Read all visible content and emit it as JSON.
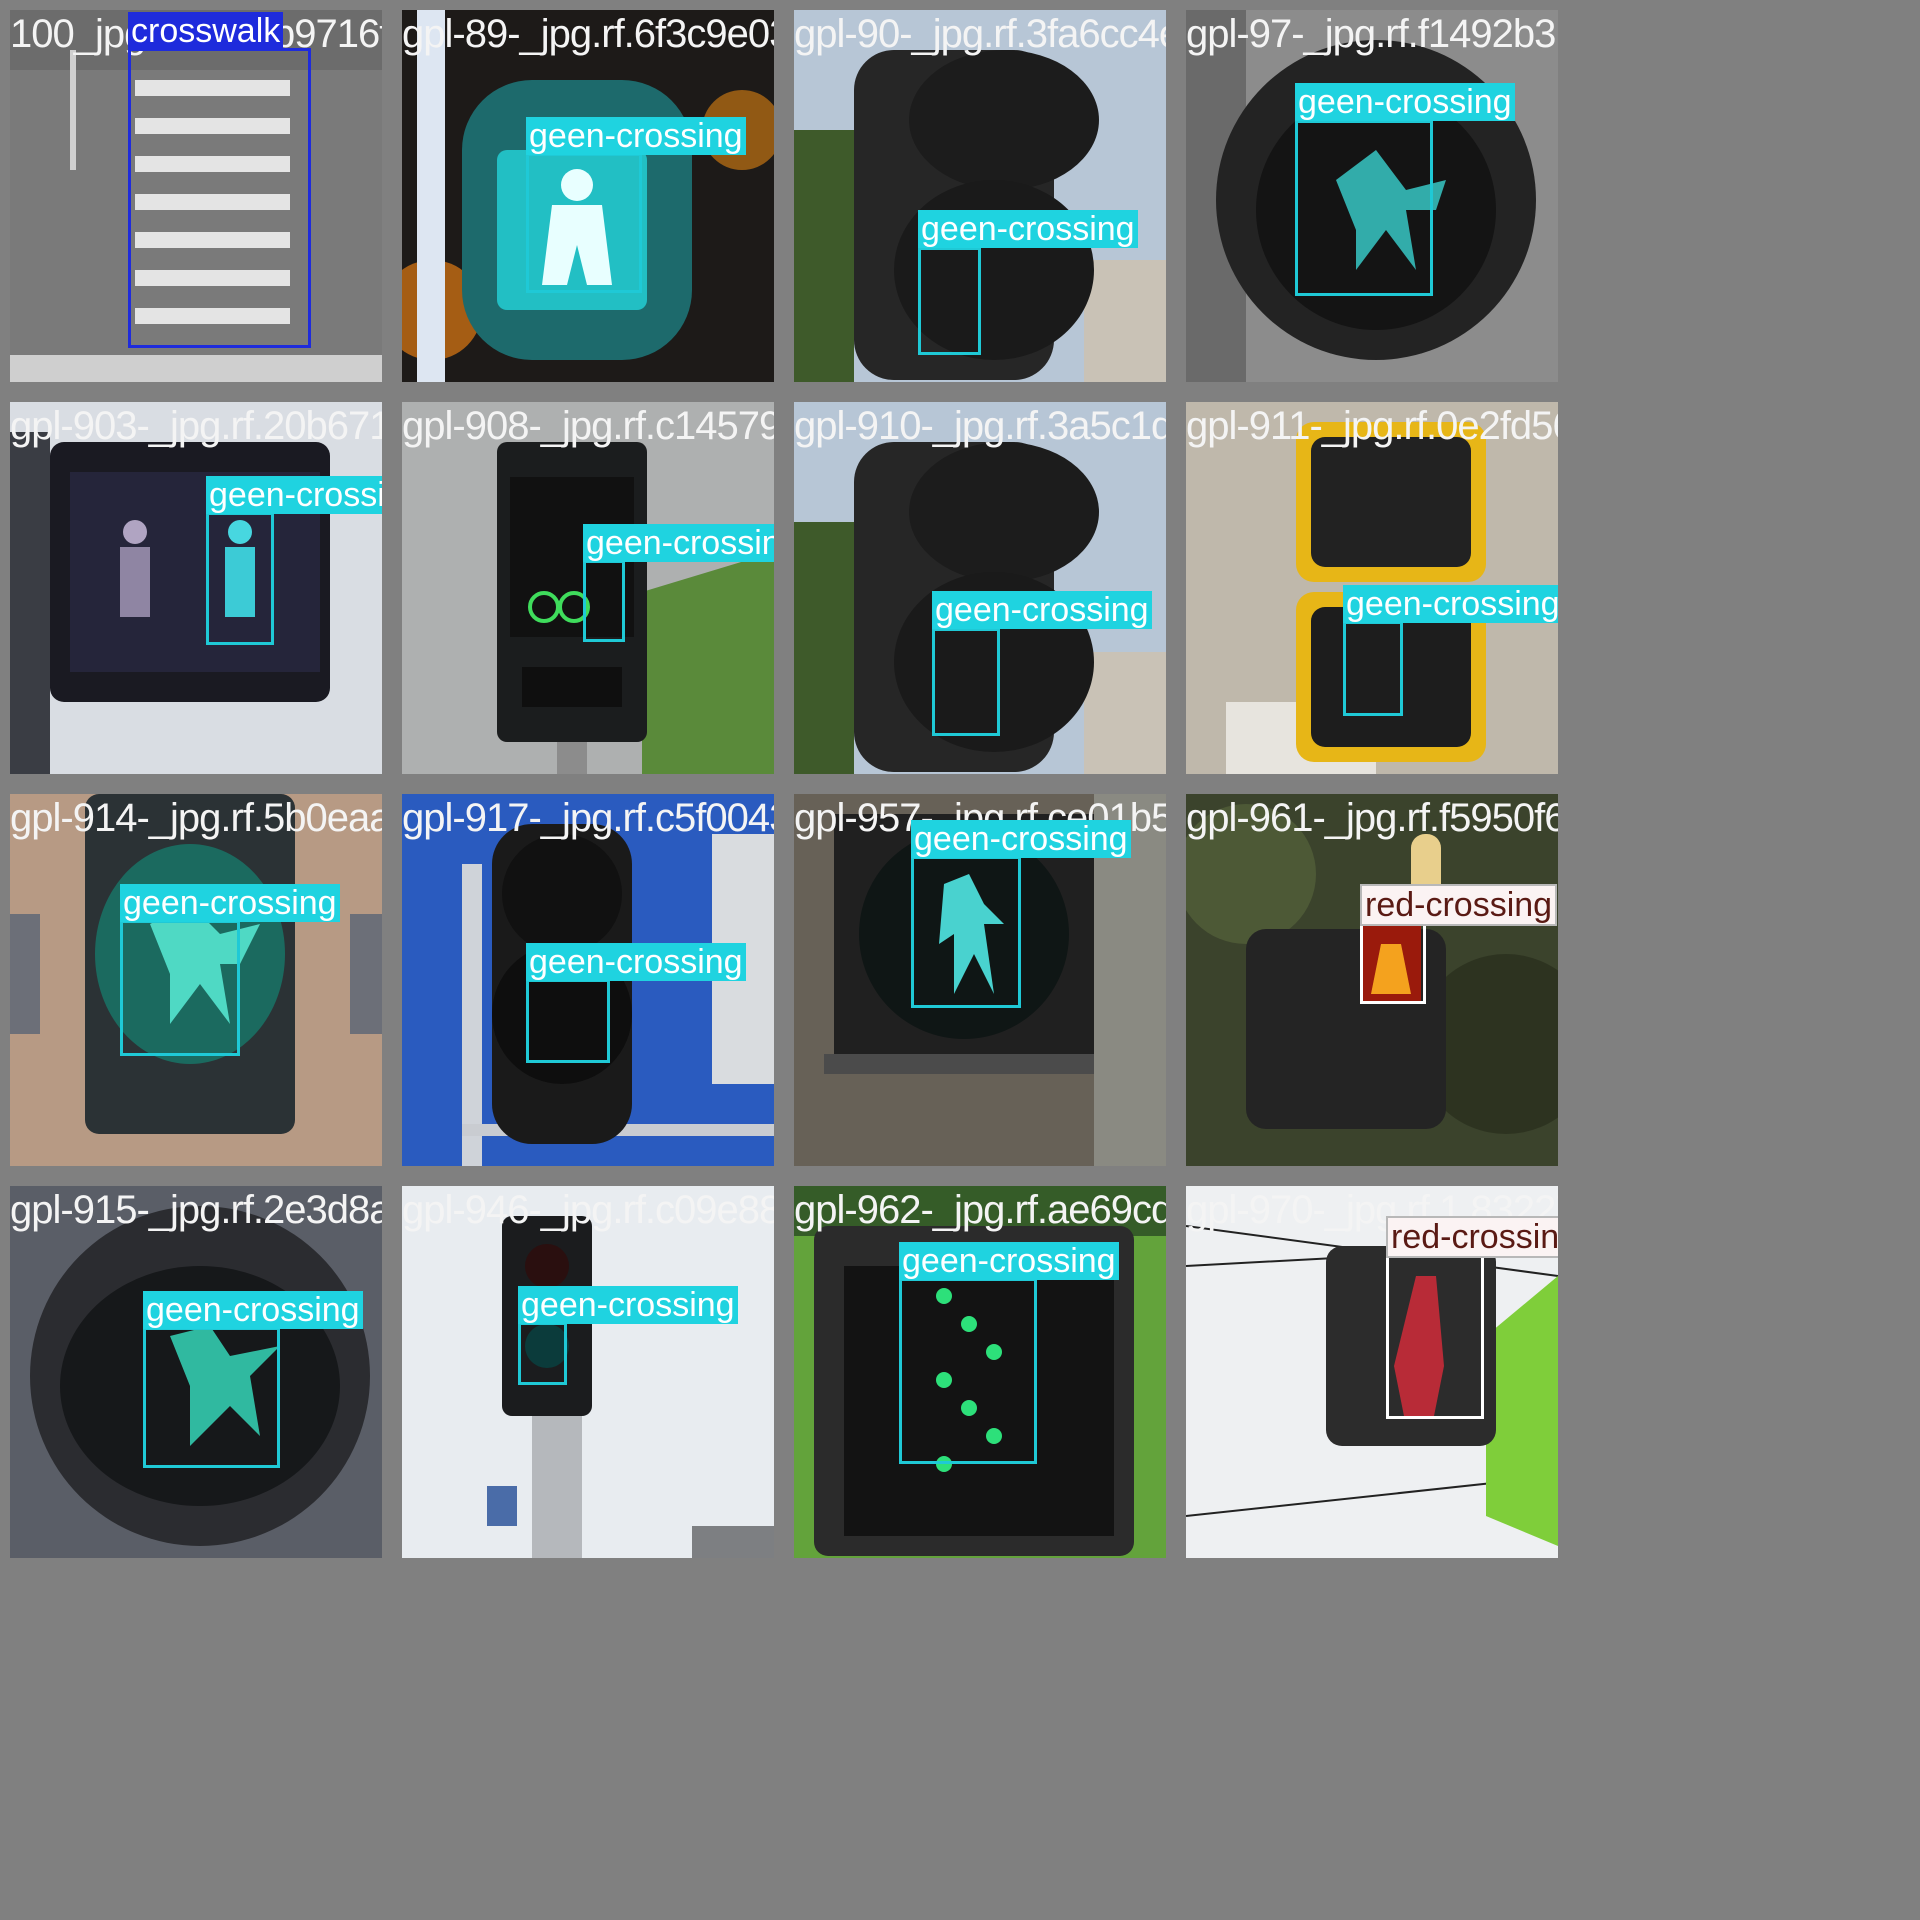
{
  "grid": {
    "columns": 4,
    "rows": 4
  },
  "classes": {
    "crosswalk": {
      "label": "crosswalk",
      "box_color": "#1e2bdc",
      "tag_bg": "#1e2bdc",
      "tag_fg": "#ffffff"
    },
    "geen-crossing": {
      "label": "geen-crossing",
      "box_color": "#1fc9d6",
      "tag_bg": "#1fd3e0",
      "tag_fg": "#ffffff"
    },
    "red-crossing": {
      "label": "red-crossing",
      "box_color": "#ffffff",
      "tag_bg": "#fbf3f3",
      "tag_fg": "#5a1a14"
    }
  },
  "tiles": [
    {
      "filename": "100_jpg.rf.1b56b9716fb415cd28",
      "scene": "crosswalk",
      "detections": [
        {
          "class": "crosswalk"
        }
      ]
    },
    {
      "filename": "gpl-89-_jpg.rf.6f3c9e0365b3c9e0",
      "scene": "teal",
      "detections": [
        {
          "class": "geen-crossing"
        }
      ]
    },
    {
      "filename": "gpl-90-_jpg.rf.3fa6cc4e7de0f6a",
      "scene": "sky",
      "detections": [
        {
          "class": "geen-crossing"
        }
      ]
    },
    {
      "filename": "gpl-97-_jpg.rf.f1492b31f945",
      "scene": "round",
      "detections": [
        {
          "class": "geen-crossing"
        }
      ]
    },
    {
      "filename": "gpl-903-_jpg.rf.20b6716b81",
      "scene": "box",
      "detections": [
        {
          "class": "geen-crossing"
        }
      ]
    },
    {
      "filename": "gpl-908-_jpg.rf.c1457942ef418",
      "scene": "push",
      "detections": [
        {
          "class": "geen-crossing"
        }
      ]
    },
    {
      "filename": "gpl-910-_jpg.rf.3a5c1d5b8f46",
      "scene": "sky",
      "detections": [
        {
          "class": "geen-crossing"
        }
      ]
    },
    {
      "filename": "gpl-911-_jpg.rf.0e2fd5613b32db",
      "scene": "yellow",
      "detections": [
        {
          "class": "geen-crossing"
        }
      ]
    },
    {
      "filename": "gpl-914-_jpg.rf.5b0eaab04722",
      "scene": "building",
      "detections": [
        {
          "class": "geen-crossing"
        }
      ]
    },
    {
      "filename": "gpl-917-_jpg.rf.c5f0043e6e08",
      "scene": "bluesky",
      "detections": [
        {
          "class": "geen-crossing"
        }
      ]
    },
    {
      "filename": "gpl-957-_jpg.rf.ce01b55517",
      "scene": "dark",
      "detections": [
        {
          "class": "geen-crossing"
        }
      ]
    },
    {
      "filename": "gpl-961-_jpg.rf.f5950f6c6476dc",
      "scene": "trees",
      "detections": [
        {
          "class": "red-crossing"
        }
      ]
    },
    {
      "filename": "gpl-915-_jpg.rf.2e3d8a77b",
      "scene": "round2",
      "detections": [
        {
          "class": "geen-crossing"
        }
      ]
    },
    {
      "filename": "gpl-946-_jpg.rf.c09e88189183",
      "scene": "pole",
      "detections": [
        {
          "class": "geen-crossing"
        }
      ]
    },
    {
      "filename": "gpl-962-_jpg.rf.ae69cd0b6525",
      "scene": "leaf",
      "detections": [
        {
          "class": "geen-crossing"
        }
      ]
    },
    {
      "filename": "gpl-970-_jpg.rf.1.832275d0f1",
      "scene": "wires",
      "detections": [
        {
          "class": "red-crossing"
        }
      ]
    }
  ]
}
